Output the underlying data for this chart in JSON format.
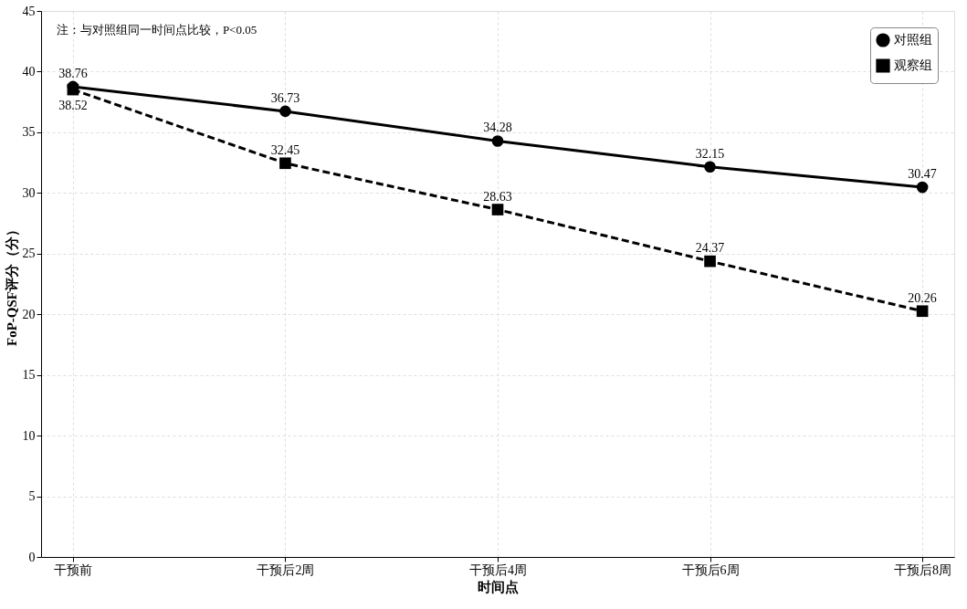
{
  "chart_data": {
    "type": "line",
    "xlabel": "时间点",
    "ylabel": "FoP-QSF评分（分）",
    "categories": [
      "干预前",
      "干预后2周",
      "干预后4周",
      "干预后6周",
      "干预后8周"
    ],
    "series": [
      {
        "name": "对照组",
        "color": "#000000",
        "marker": "circle",
        "line_style": "solid",
        "values": [
          38.76,
          36.73,
          34.28,
          32.15,
          30.47
        ]
      },
      {
        "name": "观察组",
        "color": "#000000",
        "marker": "square",
        "line_style": "dashed",
        "values": [
          38.52,
          32.45,
          28.63,
          24.37,
          20.26
        ]
      }
    ],
    "ylim": [
      0,
      45
    ],
    "yticks": [
      0,
      5,
      10,
      15,
      20,
      25,
      30,
      35,
      40,
      45
    ],
    "grid": true,
    "legend": "top right",
    "data_labels": true,
    "annotations": [
      "注：与对照组同一时间点比较，P<0.05"
    ]
  }
}
